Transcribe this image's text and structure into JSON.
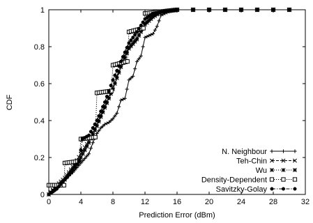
{
  "chart_data": {
    "type": "line",
    "title": "",
    "xlabel": "Prediction Error (dBm)",
    "ylabel": "CDF",
    "xlim": [
      0,
      32
    ],
    "ylim": [
      0,
      1
    ],
    "xticks": [
      "0",
      "4",
      "8",
      "12",
      "16",
      "20",
      "24",
      "28",
      "32"
    ],
    "yticks": [
      "0",
      "0.2",
      "0.4",
      "0.6",
      "0.8",
      "1"
    ],
    "grid": false,
    "legend_position": "bottom-right",
    "series": [
      {
        "name": "N. Neighbour",
        "marker": "plus",
        "dash": "solid",
        "x": [
          0,
          1,
          2,
          3,
          4,
          5,
          5.5,
          6,
          6.5,
          7,
          7.5,
          8,
          8.5,
          9,
          9.5,
          10,
          10.5,
          11,
          11.5,
          12,
          12.5,
          13,
          13.5,
          14,
          15,
          16,
          20,
          30
        ],
        "y": [
          0.0,
          0.04,
          0.08,
          0.12,
          0.17,
          0.22,
          0.28,
          0.33,
          0.36,
          0.38,
          0.39,
          0.41,
          0.44,
          0.51,
          0.52,
          0.62,
          0.64,
          0.72,
          0.75,
          0.85,
          0.86,
          0.87,
          0.91,
          0.97,
          0.99,
          1.0,
          1.0,
          1.0
        ]
      },
      {
        "name": "Teh-Chin",
        "marker": "x",
        "dash": "dashed",
        "x": [
          0,
          1,
          2,
          3,
          4,
          5,
          6,
          7,
          8,
          9,
          10,
          11,
          12,
          13,
          14,
          16,
          20,
          30
        ],
        "y": [
          0.0,
          0.05,
          0.09,
          0.15,
          0.22,
          0.29,
          0.38,
          0.48,
          0.58,
          0.7,
          0.8,
          0.85,
          0.93,
          0.97,
          0.99,
          1.0,
          1.0,
          1.0
        ]
      },
      {
        "name": "Wu",
        "marker": "asterisk",
        "dash": "dotted",
        "x": [
          0,
          1,
          2,
          3,
          4,
          5,
          6,
          7,
          8,
          9,
          10,
          11,
          12,
          13,
          14,
          16,
          20,
          30
        ],
        "y": [
          0.0,
          0.04,
          0.08,
          0.14,
          0.2,
          0.28,
          0.37,
          0.47,
          0.57,
          0.69,
          0.79,
          0.84,
          0.92,
          0.96,
          0.99,
          1.0,
          1.0,
          1.0
        ]
      },
      {
        "name": "Density-Dependent",
        "marker": "square",
        "dash": "dotted",
        "x": [
          0,
          1.9,
          2,
          3.8,
          4,
          5.8,
          6,
          7.8,
          8,
          9.8,
          10,
          11.8,
          12,
          14,
          16,
          20,
          24,
          28,
          30
        ],
        "y": [
          0.05,
          0.05,
          0.17,
          0.18,
          0.3,
          0.31,
          0.55,
          0.56,
          0.7,
          0.72,
          0.88,
          0.9,
          0.98,
          0.99,
          1.0,
          1.0,
          1.0,
          1.0,
          1.0
        ]
      },
      {
        "name": "Savitzky-Golay",
        "marker": "dot",
        "dash": "dashdot",
        "x": [
          0,
          1,
          2,
          3,
          3.8,
          4.2,
          5,
          6,
          7,
          8,
          9,
          10,
          11,
          12,
          13,
          14,
          16,
          20,
          30
        ],
        "y": [
          0.0,
          0.03,
          0.08,
          0.13,
          0.18,
          0.3,
          0.32,
          0.4,
          0.5,
          0.62,
          0.72,
          0.82,
          0.88,
          0.95,
          0.98,
          0.99,
          1.0,
          1.0,
          1.0
        ]
      }
    ]
  }
}
